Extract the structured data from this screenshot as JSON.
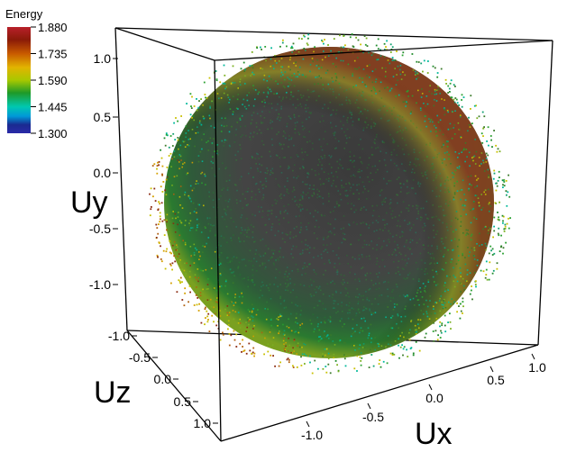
{
  "chart_data": {
    "type": "scatter",
    "subtype": "3d-scatter",
    "xlabel": "Ux",
    "ylabel": "Uy",
    "zlabel": "Uz",
    "x_ticks": [
      "-1.0",
      "-0.5",
      "0.0",
      "0.5",
      "1.0"
    ],
    "y_ticks": [
      "1.0",
      "0.5",
      "0.0",
      "-0.5",
      "-1.0"
    ],
    "z_ticks": [
      "-1.0",
      "-0.5",
      "0.0",
      "0.5",
      "1.0"
    ],
    "xlim": [
      -1.3,
      1.3
    ],
    "ylim": [
      -1.3,
      1.3
    ],
    "zlim": [
      -1.3,
      1.3
    ],
    "grid": false,
    "data_description": "dense point cloud forming a unit sphere (radius ~1), colored by energy",
    "sphere_radius": 1.0,
    "point_count_approx": 100000,
    "colorbar": {
      "title": "Energy",
      "ticks": [
        "1.880",
        "1.735",
        "1.590",
        "1.445",
        "1.300"
      ],
      "range": [
        1.3,
        1.88
      ],
      "colors": [
        "#b22222",
        "#8b1a00",
        "#c85a00",
        "#e0b000",
        "#d8d800",
        "#22a020",
        "#00c8a0",
        "#00a8d8",
        "#1a3aa0",
        "#2020a0"
      ]
    }
  }
}
